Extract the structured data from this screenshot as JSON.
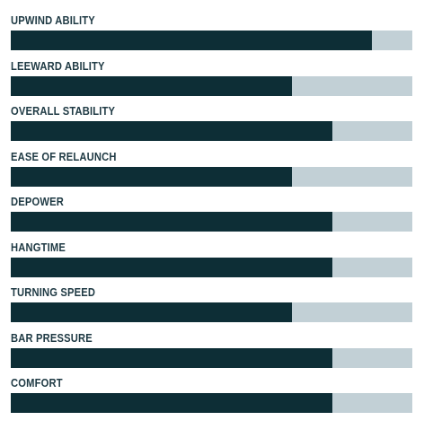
{
  "colors": {
    "fill": "#0d2e36",
    "track": "#c2d0d6",
    "label": "#1f3a44"
  },
  "ratings": [
    {
      "label": "UPWIND ABILITY",
      "value": 0.9
    },
    {
      "label": "LEEWARD ABILITY",
      "value": 0.7
    },
    {
      "label": "OVERALL STABILITY",
      "value": 0.8
    },
    {
      "label": "EASE OF RELAUNCH",
      "value": 0.7
    },
    {
      "label": "DEPOWER",
      "value": 0.8
    },
    {
      "label": "HANGTIME",
      "value": 0.8
    },
    {
      "label": "TURNING SPEED",
      "value": 0.7
    },
    {
      "label": "BAR PRESSURE",
      "value": 0.8
    },
    {
      "label": "COMFORT",
      "value": 0.8
    }
  ]
}
